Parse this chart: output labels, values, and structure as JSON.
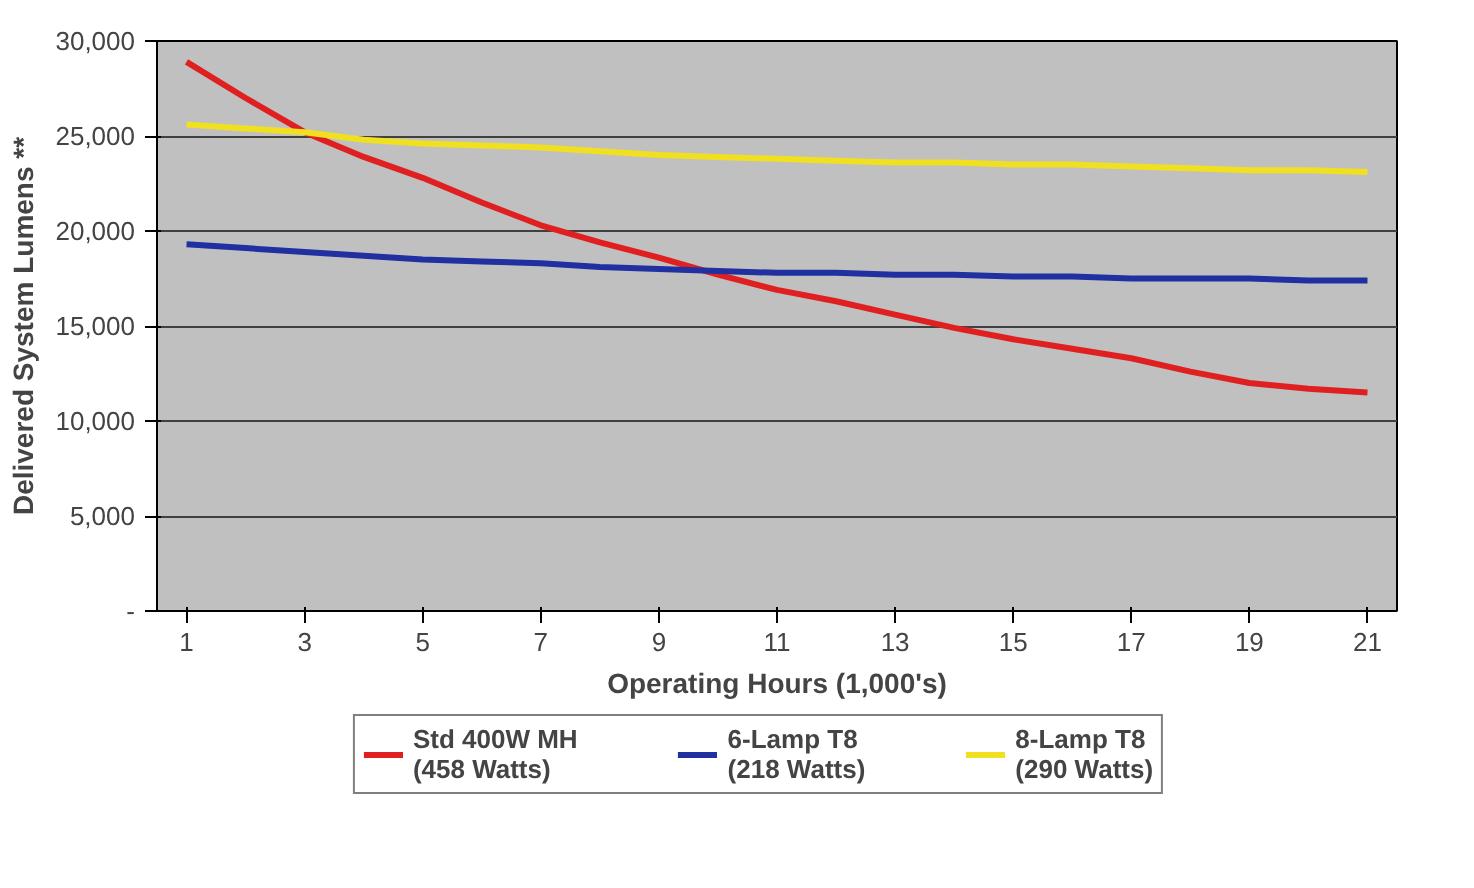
{
  "chart_data": {
    "type": "line",
    "xlabel": "Operating Hours (1,000's)",
    "ylabel": "Delivered System Lumens **",
    "x": [
      1,
      2,
      3,
      4,
      5,
      6,
      7,
      8,
      9,
      10,
      11,
      12,
      13,
      14,
      15,
      16,
      17,
      18,
      19,
      20,
      21
    ],
    "series": [
      {
        "name": "Std 400W MH\n(458 Watts)",
        "color": "#e02020",
        "values": [
          28900,
          27000,
          25200,
          23900,
          22800,
          21500,
          20300,
          19400,
          18600,
          17700,
          16900,
          16300,
          15600,
          14900,
          14300,
          13800,
          13300,
          12600,
          12000,
          11700,
          11500
        ]
      },
      {
        "name": "6-Lamp T8\n(218 Watts)",
        "color": "#2030a0",
        "values": [
          19300,
          19100,
          18900,
          18700,
          18500,
          18400,
          18300,
          18100,
          18000,
          17900,
          17800,
          17800,
          17700,
          17700,
          17600,
          17600,
          17500,
          17500,
          17500,
          17400,
          17400
        ]
      },
      {
        "name": "8-Lamp T8\n(290 Watts)",
        "color": "#f0e020",
        "values": [
          25600,
          25400,
          25200,
          24800,
          24600,
          24500,
          24400,
          24200,
          24000,
          23900,
          23800,
          23700,
          23600,
          23600,
          23500,
          23500,
          23400,
          23300,
          23200,
          23200,
          23100
        ]
      }
    ],
    "xlim": [
      0.5,
      21.5
    ],
    "xticks": [
      1,
      3,
      5,
      7,
      9,
      11,
      13,
      15,
      17,
      19,
      21
    ],
    "ylim": [
      0,
      30000
    ],
    "yticks": [
      {
        "value": 0,
        "label": "-"
      },
      {
        "value": 5000,
        "label": "5,000"
      },
      {
        "value": 10000,
        "label": "10,000"
      },
      {
        "value": 15000,
        "label": "15,000"
      },
      {
        "value": 20000,
        "label": "20,000"
      },
      {
        "value": 25000,
        "label": "25,000"
      },
      {
        "value": 30000,
        "label": "30,000"
      }
    ],
    "grid": "y",
    "legend": "bottom",
    "marker": "none",
    "line_style": "solid"
  }
}
